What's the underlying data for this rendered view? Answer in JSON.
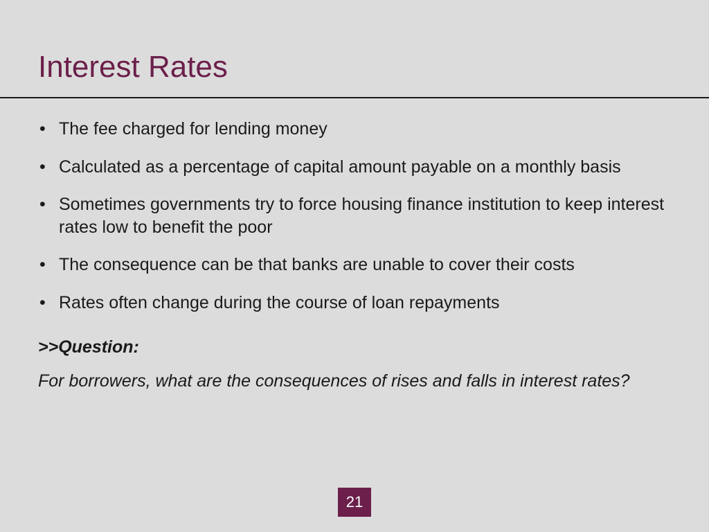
{
  "slide": {
    "title": "Interest Rates",
    "title_color": "#6b1f4a",
    "background_color": "#dcdcdc",
    "divider_color": "#1a1a1a",
    "text_color": "#1a1a1a",
    "bullets": [
      "The fee charged for lending money",
      "Calculated as a percentage of capital amount payable on a monthly basis",
      "Sometimes governments try to force housing finance institution to keep interest rates low to benefit the poor",
      "The consequence can be that banks are unable to cover their costs",
      "Rates often change during the course of loan repayments"
    ],
    "question_label": ">>Question:",
    "question_text": "For borrowers, what are the consequences of rises and falls in interest rates?",
    "page_number": "21",
    "page_number_bg": "#6b1f4a",
    "page_number_color": "#ffffff",
    "title_fontsize": 44,
    "body_fontsize": 25
  }
}
